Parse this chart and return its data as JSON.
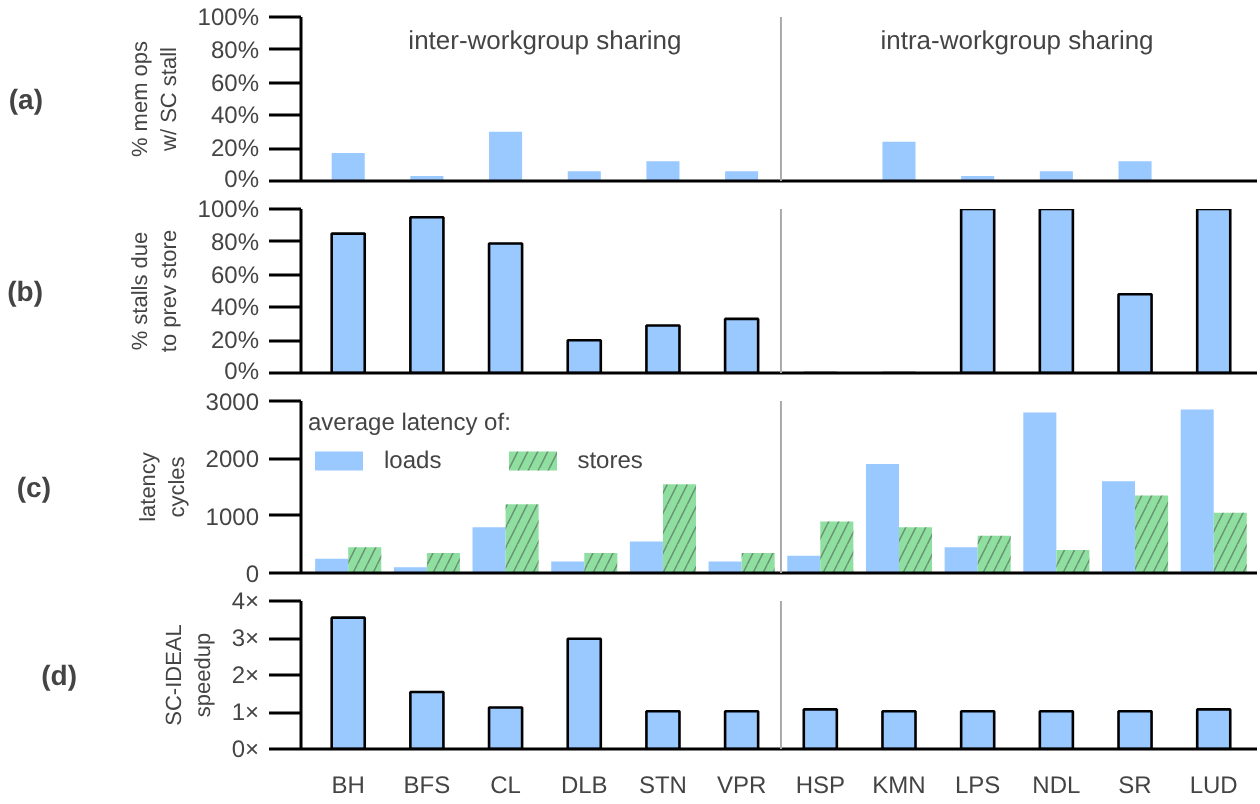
{
  "chart_data": [
    {
      "type": "bar",
      "annotations": [
        "(a)",
        "inter-workgroup sharing",
        "intra-workgroup sharing"
      ],
      "ylabel": "% mem ops w/ SC stall",
      "categories": [
        null,
        null,
        null,
        null,
        null,
        null,
        null,
        null,
        null,
        null,
        null,
        null
      ],
      "series": [
        {
          "color": "#99c9ff",
          "values": [
            17,
            3,
            30,
            6,
            12,
            6,
            null,
            24,
            3,
            6,
            12,
            0
          ]
        }
      ],
      "ylim": [
        0,
        100
      ],
      "yticks": [
        {
          "value": 0,
          "label": "0%"
        },
        {
          "value": 20,
          "label": "20%"
        },
        {
          "value": 40,
          "label": "40%"
        },
        {
          "value": 60,
          "label": "60%"
        },
        {
          "value": 80,
          "label": "80%"
        },
        {
          "value": 100,
          "label": "100%"
        }
      ],
      "tick_labels": "y"
    },
    {
      "type": "bar",
      "annotations": [
        "(b)"
      ],
      "ylabel": "% stalls due to prev store",
      "categories": [
        null,
        null,
        null,
        null,
        null,
        null,
        null,
        null,
        null,
        null,
        null,
        null
      ],
      "series": [
        {
          "color": "#99c9ff",
          "values": [
            85,
            95,
            79,
            20,
            29,
            33,
            null,
            null,
            100,
            100,
            48,
            100
          ]
        }
      ],
      "ylim": [
        0,
        100
      ],
      "yticks": [
        {
          "value": 0,
          "label": "0%"
        },
        {
          "value": 20,
          "label": "20%"
        },
        {
          "value": 40,
          "label": "40%"
        },
        {
          "value": 60,
          "label": "60%"
        },
        {
          "value": 80,
          "label": "80%"
        },
        {
          "value": 100,
          "label": "100%"
        }
      ],
      "tick_labels": "y"
    },
    {
      "type": "bar",
      "annotations": [
        "(c)"
      ],
      "ylabel": "latency cycles",
      "legend_title": "average latency of:",
      "legend": "top left",
      "categories": [
        null,
        null,
        null,
        null,
        null,
        null,
        null,
        null,
        null,
        null,
        null,
        null
      ],
      "series": [
        {
          "name": "loads",
          "color": "#99c9ff",
          "values": [
            250,
            100,
            800,
            200,
            550,
            200,
            300,
            1900,
            450,
            2800,
            1600,
            2850
          ]
        },
        {
          "name": "stores",
          "color": "#8fe0a0",
          "values": [
            450,
            350,
            1200,
            350,
            1550,
            350,
            900,
            800,
            650,
            400,
            1350,
            1050
          ]
        }
      ],
      "ylim": [
        0,
        3000
      ],
      "yticks": [
        0,
        1000,
        2000,
        3000
      ],
      "tick_labels": "y"
    },
    {
      "type": "bar",
      "annotations": [
        "(d)"
      ],
      "ylabel": "SC-IDEAL speedup",
      "categories": [
        "BH",
        "BFS",
        "CL",
        "DLB",
        "STN",
        "VPR",
        "HSP",
        "KMN",
        "LPS",
        "NDL",
        "SR",
        "LUD"
      ],
      "series": [
        {
          "color": "#99c9ff",
          "values": [
            3.55,
            1.54,
            1.12,
            2.98,
            1.02,
            1.02,
            1.07,
            1.02,
            1.02,
            1.02,
            1.02,
            1.07
          ]
        }
      ],
      "ylim": [
        0,
        4
      ],
      "yticks": [
        {
          "value": 0,
          "label": "0×"
        },
        {
          "value": 1,
          "label": "1×"
        },
        {
          "value": 2,
          "label": "2×"
        },
        {
          "value": 3,
          "label": "3×"
        },
        {
          "value": 4,
          "label": "4×"
        }
      ]
    }
  ]
}
